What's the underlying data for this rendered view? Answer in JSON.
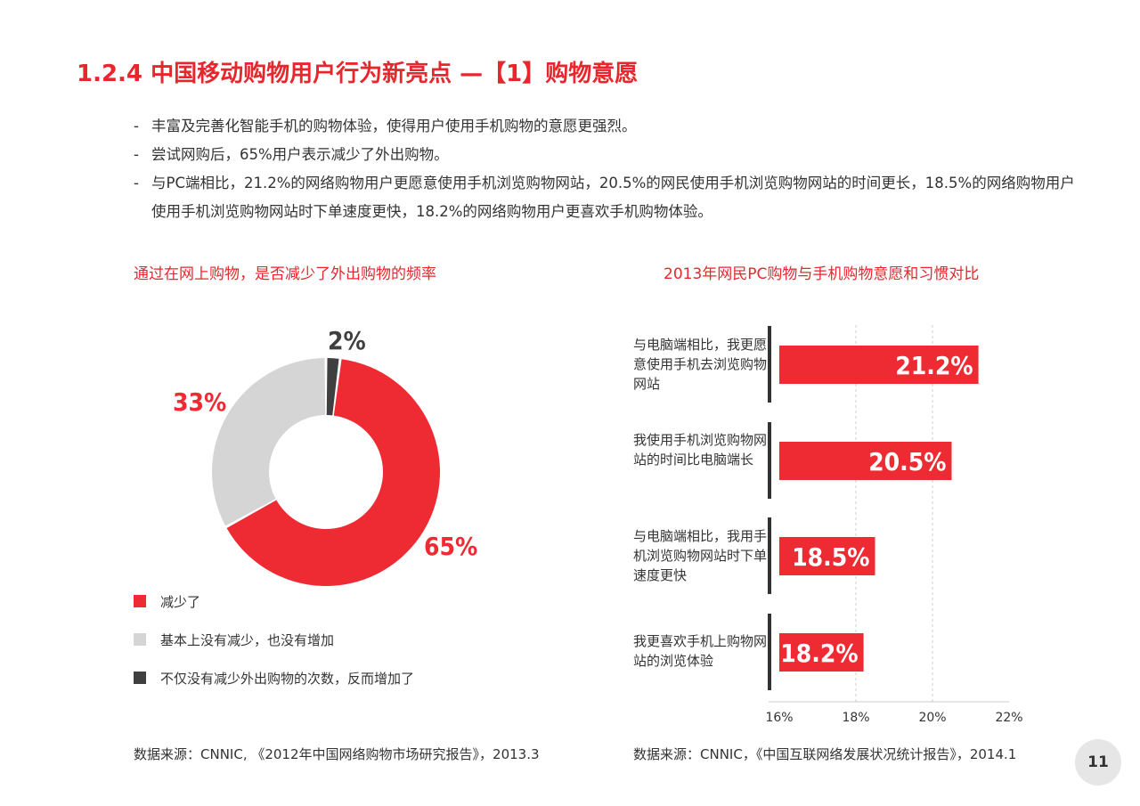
{
  "title": "1.2.4 中国移动购物用户行为新亮点 —【1】购物意愿",
  "bullets": [
    {
      "dash": "-",
      "text": "丰富及完善化智能手机的购物体验，使得用户使用手机购物的意愿更强烈。"
    },
    {
      "dash": "-",
      "text": "尝试网购后，65%用户表示减少了外出购物。"
    },
    {
      "dash": "-",
      "text": "与PC端相比，21.2%的网络购物用户更愿意使用手机浏览购物网站，20.5%的网民使用手机浏览购物网站的时间更长，18.5%的网络购物用户使用手机浏览购物网站时下单速度更快，18.2%的网络购物用户更喜欢手机购物体验。"
    }
  ],
  "left_subtitle": "通过在网上购物，是否减少了外出购物的频率",
  "right_subtitle": "2013年网民PC购物与手机购物意愿和习惯对比",
  "colors": {
    "red": "#ee2b33",
    "light_gray": "#d5d5d5",
    "dark_gray": "#3f3f3f"
  },
  "source_left": "数据来源：CNNIC, 《2012年中国网络购物市场研究报告》，2013.3",
  "source_right": "数据来源：CNNIC，《中国互联网络发展状况统计报告》，2014.1",
  "page_number": "11",
  "chart_data": [
    {
      "type": "pie",
      "title": "通过在网上购物，是否减少了外出购物的频率",
      "slices": [
        {
          "name": "减少了",
          "value": 65,
          "label": "65%",
          "color": "#ee2b33"
        },
        {
          "name": "基本上没有减少，也没有增加",
          "value": 33,
          "label": "33%",
          "color": "#d5d5d5"
        },
        {
          "name": "不仅没有减少外出购物的次数，反而增加了",
          "value": 2,
          "label": "2%",
          "color": "#3f3f3f"
        }
      ],
      "legend_position": "bottom-left"
    },
    {
      "type": "bar",
      "orientation": "horizontal",
      "title": "2013年网民PC购物与手机购物意愿和习惯对比",
      "categories": [
        "与电脑端相比，我更愿意使用手机去浏览购物网站",
        "我使用手机浏览购物网站的时间比电脑端长",
        "与电脑端相比，我用手机浏览购物网站时下单速度更快",
        "我更喜欢手机上购物网站的浏览体验"
      ],
      "values": [
        21.2,
        20.5,
        18.5,
        18.2
      ],
      "value_labels": [
        "21.2%",
        "20.5%",
        "18.5%",
        "18.2%"
      ],
      "xlim": [
        16,
        22
      ],
      "xticks": [
        "16%",
        "18%",
        "20%",
        "22%"
      ],
      "grid": "vertical dashed",
      "color": "#ee2b33"
    }
  ]
}
